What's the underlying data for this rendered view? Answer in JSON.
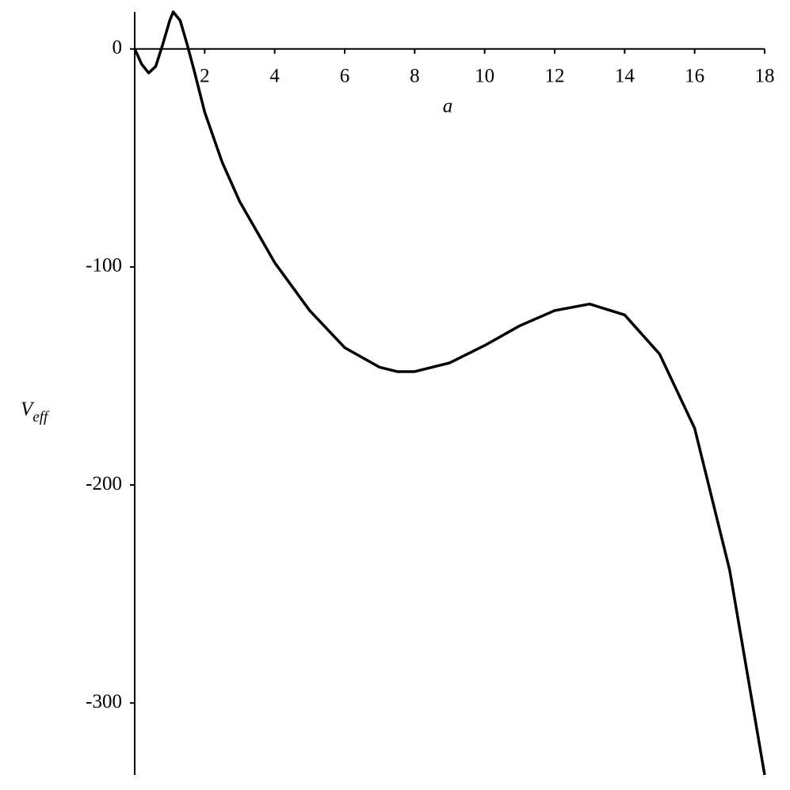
{
  "chart_data": {
    "type": "line",
    "x_label": "a",
    "y_label": "V",
    "y_label_subscript": "eff",
    "color": "#000000",
    "x": [
      0,
      0.2,
      0.4,
      0.6,
      0.8,
      1.0,
      1.1,
      1.3,
      1.5,
      1.7,
      2.0,
      2.5,
      3,
      4,
      5,
      6,
      7,
      7.5,
      8,
      9,
      10,
      11,
      12,
      13,
      14,
      15,
      16,
      17,
      18
    ],
    "values": [
      0,
      -7,
      -11,
      -8,
      2,
      13,
      17,
      13,
      2,
      -10,
      -29,
      -52,
      -70,
      -98,
      -120,
      -137,
      -146,
      -148,
      -148,
      -144,
      -136,
      -127,
      -120,
      -117,
      -122,
      -140,
      -174,
      -239,
      -333
    ],
    "xlim": [
      0,
      18
    ],
    "ylim": [
      -333,
      17
    ],
    "xticks": [
      2,
      4,
      6,
      8,
      10,
      12,
      14,
      16,
      18
    ],
    "yticks": [
      -300,
      -200,
      -100,
      0
    ],
    "grid": false
  }
}
